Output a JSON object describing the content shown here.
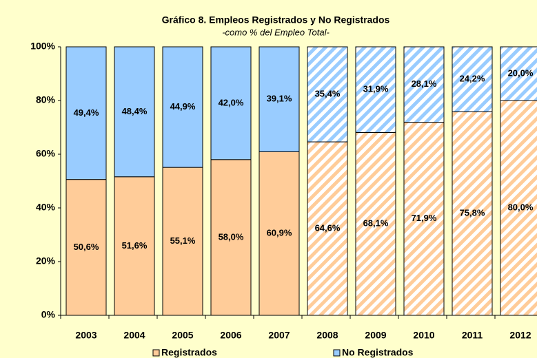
{
  "chart_data": {
    "type": "stacked_bar",
    "title": "Gráfico 8. Empleos Registrados y No Registrados",
    "subtitle": "-como % del Empleo Total-",
    "categories": [
      "2003",
      "2004",
      "2005",
      "2006",
      "2007",
      "2008",
      "2009",
      "2010",
      "2011",
      "2012"
    ],
    "series": [
      {
        "name": "Registrados",
        "color": "#ffcc99",
        "values": [
          50.6,
          51.6,
          55.1,
          58.0,
          60.9,
          64.6,
          68.1,
          71.9,
          75.8,
          80.0
        ],
        "value_labels": [
          "50,6%",
          "51,6%",
          "55,1%",
          "58,0%",
          "60,9%",
          "64,6%",
          "68,1%",
          "71,9%",
          "75,8%",
          "80,0%"
        ]
      },
      {
        "name": "No Registrados",
        "color": "#99ccff",
        "values": [
          49.4,
          48.4,
          44.9,
          42.0,
          39.1,
          35.4,
          31.9,
          28.1,
          24.2,
          20.0
        ],
        "value_labels": [
          "49,4%",
          "48,4%",
          "44,9%",
          "42,0%",
          "39,1%",
          "35,4%",
          "31,9%",
          "28,1%",
          "24,2%",
          "20,0%"
        ]
      }
    ],
    "hatched": [
      false,
      false,
      false,
      false,
      false,
      true,
      true,
      true,
      true,
      true
    ],
    "ylim": [
      0,
      100
    ],
    "yticks": [
      {
        "value": 0,
        "label": "0%"
      },
      {
        "value": 20,
        "label": "20%"
      },
      {
        "value": 40,
        "label": "40%"
      },
      {
        "value": 60,
        "label": "60%"
      },
      {
        "value": 80,
        "label": "80%"
      },
      {
        "value": 100,
        "label": "100%"
      }
    ],
    "legend": "bottom"
  }
}
